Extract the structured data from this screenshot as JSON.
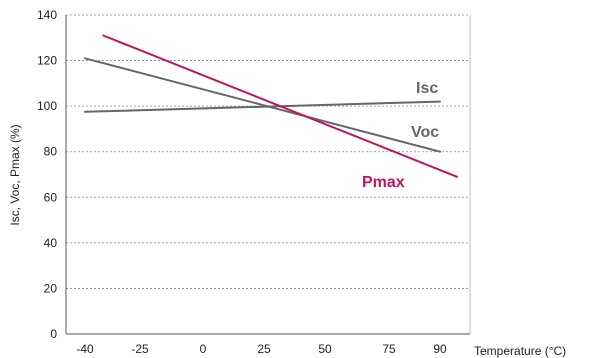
{
  "chart_data": {
    "type": "line",
    "xlabel": "Temperature (°C)",
    "ylabel": "Isc, Voc, Pmax (%)",
    "xlim": [
      -40,
      90
    ],
    "ylim": [
      0,
      140
    ],
    "x_ticks": [
      "-40",
      "-25",
      "0",
      "25",
      "50",
      "75",
      "90"
    ],
    "y_ticks": [
      "0",
      "20",
      "40",
      "60",
      "80",
      "100",
      "120",
      "140"
    ],
    "grid": "horizontal dashed",
    "series": [
      {
        "name": "Isc",
        "x": [
          -40,
          90
        ],
        "y": [
          97.5,
          102
        ],
        "color": "#666666"
      },
      {
        "name": "Voc",
        "x": [
          -40,
          90
        ],
        "y": [
          121,
          80
        ],
        "color": "#666666"
      },
      {
        "name": "Pmax",
        "x": [
          -35,
          95
        ],
        "y": [
          131,
          69
        ],
        "color": "#c0145f"
      }
    ]
  }
}
